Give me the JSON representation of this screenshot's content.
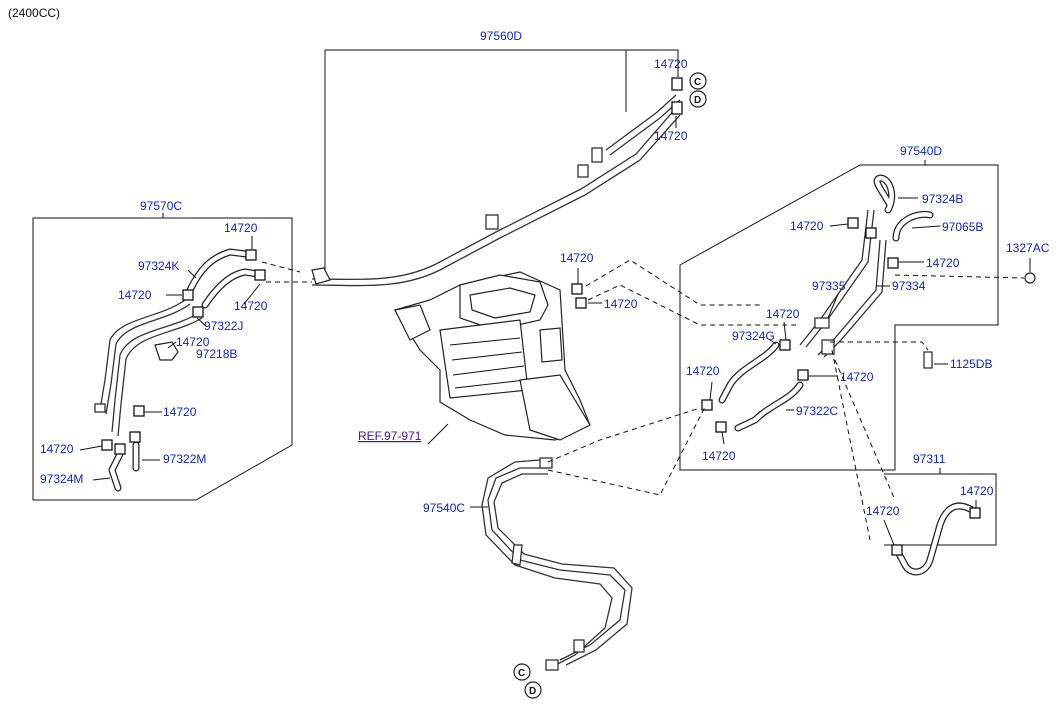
{
  "header": {
    "engine": "(2400CC)"
  },
  "labels": {
    "hose_assy_top": "97560D",
    "hose_assy_left": "97570C",
    "hose_assy_right": "97540D",
    "hose_assy_bottom": "97540C",
    "hose_small": "97311",
    "clamp": "14720",
    "hose_k": "97324K",
    "hose_j": "97322J",
    "bracket_b": "97218B",
    "hose_m_upper": "97322M",
    "hose_m_lower": "97324M",
    "hose_b": "97324B",
    "valve_b": "97065B",
    "hose_g": "97324G",
    "hose_c": "97322C",
    "pipe_335": "97335",
    "pipe_334": "97334",
    "bolt_ac": "1327AC",
    "bolt_db": "1125DB",
    "ref": "REF.97-971",
    "conn_c": "C",
    "conn_d": "D"
  }
}
